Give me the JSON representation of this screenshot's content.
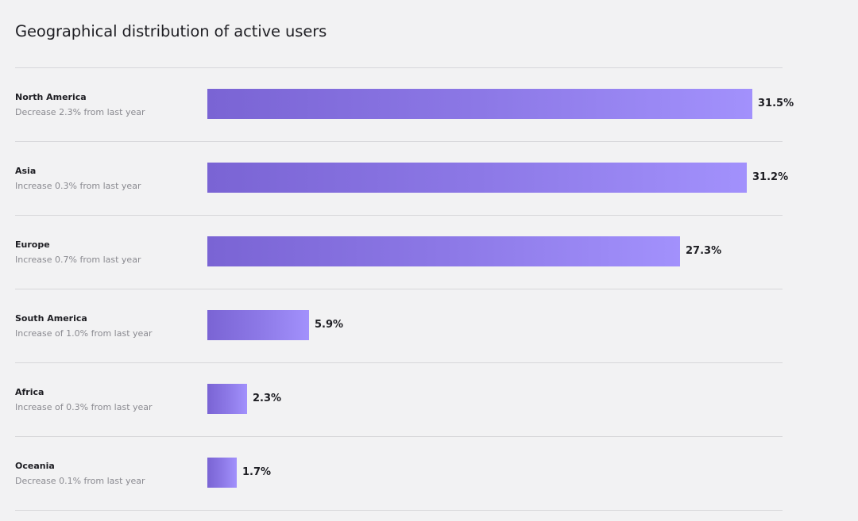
{
  "title": "Geographical distribution of active users",
  "chart_data": {
    "type": "bar",
    "orientation": "horizontal",
    "title": "Geographical distribution of active users",
    "xlabel": "",
    "ylabel": "",
    "unit": "%",
    "categories": [
      "North America",
      "Asia",
      "Europe",
      "South America",
      "Africa",
      "Oceania"
    ],
    "values": [
      31.5,
      31.2,
      27.3,
      5.9,
      2.3,
      1.7
    ],
    "value_labels": [
      "31.5%",
      "31.2%",
      "27.3%",
      "5.9%",
      "2.3%",
      "1.7%"
    ],
    "annotations": [
      "Decrease 2.3% from last year",
      "Increase 0.3% from last year",
      "Increase 0.7% from last year",
      "Increase of 1.0% from last year",
      "Increase of 0.3% from last year",
      "Decrease 0.1% from last year"
    ],
    "bar_colors": [
      "#7a64d4",
      "#a291fc"
    ],
    "grid": false,
    "legend": "none"
  },
  "colors": {
    "background": "#f2f2f3",
    "divider": "#d7d7da",
    "text": "#1e1e23",
    "subtext": "#8a8a90"
  }
}
